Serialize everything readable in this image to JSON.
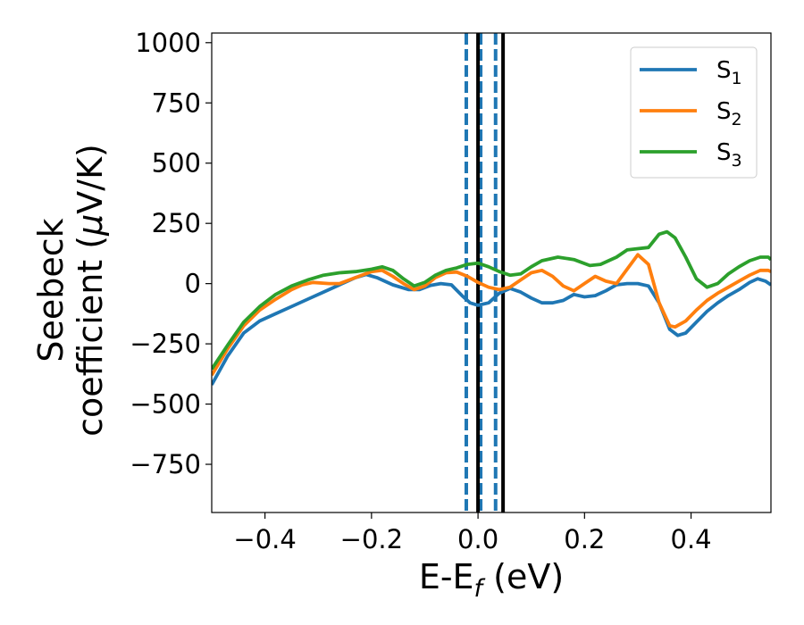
{
  "chart_data": {
    "type": "line",
    "xlabel_main": "E-E",
    "xlabel_sub": "f",
    "xlabel_unit": " (eV)",
    "ylabel_line1": "Seebeck",
    "ylabel_line2_pre": "coefficient  (",
    "ylabel_mu": "μ",
    "ylabel_line2_post": "V/K)",
    "xlim": [
      -0.5,
      0.55
    ],
    "ylim": [
      -950,
      1040
    ],
    "xticks": [
      -0.4,
      -0.2,
      0.0,
      0.2,
      0.4
    ],
    "xtick_labels": [
      "−0.4",
      "−0.2",
      "0.0",
      "0.2",
      "0.4"
    ],
    "yticks": [
      1000,
      750,
      500,
      250,
      0,
      -250,
      -500,
      -750
    ],
    "ytick_labels": [
      "1000",
      "750",
      "500",
      "250",
      "0",
      "−250",
      "−500",
      "−750"
    ],
    "legend_position": "top-right",
    "grid": false,
    "vlines": [
      {
        "x": -0.022,
        "color": "#1f77b4",
        "style": "dashed"
      },
      {
        "x": 0.005,
        "color": "#1f77b4",
        "style": "dashed"
      },
      {
        "x": 0.033,
        "color": "#1f77b4",
        "style": "dashed"
      },
      {
        "x": 0.0,
        "color": "#000000",
        "style": "solid"
      },
      {
        "x": 0.047,
        "color": "#000000",
        "style": "solid"
      }
    ],
    "series": [
      {
        "name": "S",
        "sub": "1",
        "color": "#1f77b4",
        "points": [
          [
            -0.5,
            -420
          ],
          [
            -0.47,
            -300
          ],
          [
            -0.44,
            -205
          ],
          [
            -0.41,
            -155
          ],
          [
            -0.38,
            -125
          ],
          [
            -0.35,
            -95
          ],
          [
            -0.32,
            -65
          ],
          [
            -0.29,
            -35
          ],
          [
            -0.26,
            -5
          ],
          [
            -0.23,
            25
          ],
          [
            -0.21,
            38
          ],
          [
            -0.19,
            25
          ],
          [
            -0.16,
            -5
          ],
          [
            -0.13,
            -25
          ],
          [
            -0.11,
            -25
          ],
          [
            -0.09,
            -8
          ],
          [
            -0.07,
            0
          ],
          [
            -0.05,
            -5
          ],
          [
            -0.03,
            -50
          ],
          [
            -0.015,
            -80
          ],
          [
            0.0,
            -90
          ],
          [
            0.02,
            -80
          ],
          [
            0.04,
            -40
          ],
          [
            0.06,
            -20
          ],
          [
            0.08,
            -35
          ],
          [
            0.1,
            -60
          ],
          [
            0.12,
            -80
          ],
          [
            0.14,
            -80
          ],
          [
            0.16,
            -70
          ],
          [
            0.18,
            -45
          ],
          [
            0.2,
            -55
          ],
          [
            0.22,
            -50
          ],
          [
            0.24,
            -30
          ],
          [
            0.26,
            -5
          ],
          [
            0.28,
            0
          ],
          [
            0.3,
            0
          ],
          [
            0.32,
            -10
          ],
          [
            0.34,
            -80
          ],
          [
            0.36,
            -190
          ],
          [
            0.375,
            -215
          ],
          [
            0.39,
            -205
          ],
          [
            0.41,
            -160
          ],
          [
            0.43,
            -115
          ],
          [
            0.45,
            -80
          ],
          [
            0.47,
            -50
          ],
          [
            0.49,
            -25
          ],
          [
            0.51,
            5
          ],
          [
            0.525,
            20
          ],
          [
            0.54,
            10
          ],
          [
            0.55,
            -5
          ]
        ]
      },
      {
        "name": "S",
        "sub": "2",
        "color": "#ff7f0e",
        "points": [
          [
            -0.5,
            -380
          ],
          [
            -0.47,
            -270
          ],
          [
            -0.44,
            -175
          ],
          [
            -0.41,
            -110
          ],
          [
            -0.38,
            -65
          ],
          [
            -0.35,
            -25
          ],
          [
            -0.33,
            -5
          ],
          [
            -0.31,
            5
          ],
          [
            -0.28,
            0
          ],
          [
            -0.26,
            0
          ],
          [
            -0.23,
            25
          ],
          [
            -0.2,
            50
          ],
          [
            -0.18,
            55
          ],
          [
            -0.16,
            30
          ],
          [
            -0.14,
            0
          ],
          [
            -0.12,
            -25
          ],
          [
            -0.1,
            -10
          ],
          [
            -0.08,
            25
          ],
          [
            -0.06,
            45
          ],
          [
            -0.04,
            48
          ],
          [
            -0.02,
            30
          ],
          [
            0.0,
            5
          ],
          [
            0.02,
            -15
          ],
          [
            0.04,
            -25
          ],
          [
            0.06,
            -15
          ],
          [
            0.08,
            15
          ],
          [
            0.1,
            45
          ],
          [
            0.12,
            55
          ],
          [
            0.14,
            30
          ],
          [
            0.16,
            -10
          ],
          [
            0.18,
            -30
          ],
          [
            0.2,
            0
          ],
          [
            0.22,
            30
          ],
          [
            0.24,
            10
          ],
          [
            0.26,
            0
          ],
          [
            0.28,
            60
          ],
          [
            0.3,
            120
          ],
          [
            0.32,
            80
          ],
          [
            0.34,
            -80
          ],
          [
            0.36,
            -175
          ],
          [
            0.37,
            -180
          ],
          [
            0.39,
            -155
          ],
          [
            0.41,
            -110
          ],
          [
            0.43,
            -70
          ],
          [
            0.45,
            -40
          ],
          [
            0.47,
            -15
          ],
          [
            0.49,
            10
          ],
          [
            0.51,
            35
          ],
          [
            0.53,
            55
          ],
          [
            0.545,
            55
          ],
          [
            0.55,
            50
          ]
        ]
      },
      {
        "name": "S",
        "sub": "3",
        "color": "#2ca02c",
        "points": [
          [
            -0.5,
            -355
          ],
          [
            -0.47,
            -255
          ],
          [
            -0.44,
            -160
          ],
          [
            -0.41,
            -95
          ],
          [
            -0.38,
            -45
          ],
          [
            -0.35,
            -10
          ],
          [
            -0.32,
            15
          ],
          [
            -0.29,
            35
          ],
          [
            -0.26,
            45
          ],
          [
            -0.23,
            50
          ],
          [
            -0.2,
            60
          ],
          [
            -0.18,
            70
          ],
          [
            -0.16,
            55
          ],
          [
            -0.14,
            20
          ],
          [
            -0.12,
            -10
          ],
          [
            -0.1,
            5
          ],
          [
            -0.08,
            35
          ],
          [
            -0.06,
            55
          ],
          [
            -0.04,
            65
          ],
          [
            -0.02,
            80
          ],
          [
            0.0,
            85
          ],
          [
            0.02,
            70
          ],
          [
            0.04,
            50
          ],
          [
            0.06,
            35
          ],
          [
            0.08,
            40
          ],
          [
            0.1,
            70
          ],
          [
            0.12,
            95
          ],
          [
            0.15,
            110
          ],
          [
            0.18,
            100
          ],
          [
            0.21,
            75
          ],
          [
            0.23,
            80
          ],
          [
            0.26,
            110
          ],
          [
            0.28,
            140
          ],
          [
            0.3,
            145
          ],
          [
            0.32,
            150
          ],
          [
            0.34,
            205
          ],
          [
            0.355,
            215
          ],
          [
            0.37,
            190
          ],
          [
            0.39,
            110
          ],
          [
            0.41,
            20
          ],
          [
            0.43,
            -15
          ],
          [
            0.45,
            0
          ],
          [
            0.47,
            40
          ],
          [
            0.49,
            70
          ],
          [
            0.51,
            95
          ],
          [
            0.53,
            110
          ],
          [
            0.545,
            110
          ],
          [
            0.55,
            100
          ]
        ]
      }
    ]
  }
}
